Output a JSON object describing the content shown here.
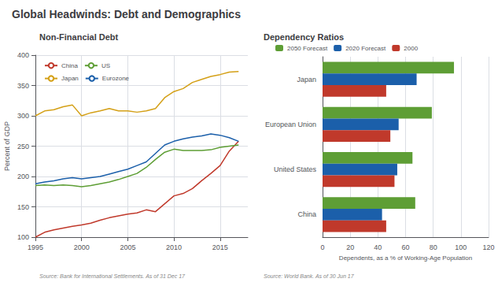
{
  "title": "Global Headwinds: Debt and Demographics",
  "chart_data": [
    {
      "type": "line",
      "title": "Non-Financial Debt",
      "ylabel": "Percent of GDP",
      "annotations": [
        "Source: Bank for International Settlements. As of 31 Dec 17"
      ],
      "x": [
        1995,
        1996,
        1997,
        1998,
        1999,
        2000,
        2001,
        2002,
        2003,
        2004,
        2005,
        2006,
        2007,
        2008,
        2009,
        2010,
        2011,
        2012,
        2013,
        2014,
        2015,
        2016,
        2017
      ],
      "series": [
        {
          "name": "China",
          "color": "#C0392B",
          "values": [
            100,
            108,
            112,
            115,
            118,
            120,
            123,
            128,
            132,
            135,
            138,
            140,
            145,
            142,
            155,
            168,
            172,
            180,
            193,
            205,
            218,
            242,
            258
          ]
        },
        {
          "name": "US",
          "color": "#5E9E35",
          "values": [
            185,
            186,
            185,
            186,
            185,
            183,
            185,
            188,
            191,
            195,
            200,
            205,
            215,
            228,
            240,
            245,
            243,
            243,
            243,
            244,
            248,
            250,
            252
          ]
        },
        {
          "name": "Japan",
          "color": "#D4A017",
          "values": [
            300,
            308,
            310,
            315,
            318,
            300,
            305,
            308,
            312,
            308,
            308,
            306,
            308,
            312,
            330,
            340,
            345,
            355,
            360,
            365,
            368,
            372,
            373
          ]
        },
        {
          "name": "Eurozone",
          "color": "#1B5FAA",
          "values": [
            188,
            191,
            193,
            196,
            198,
            196,
            198,
            200,
            204,
            208,
            212,
            218,
            224,
            238,
            252,
            258,
            262,
            265,
            267,
            270,
            268,
            264,
            258
          ]
        }
      ],
      "xlim": [
        1995,
        2018
      ],
      "xticks": [
        1995,
        2000,
        2005,
        2010,
        2015
      ],
      "ylim": [
        100,
        400
      ],
      "yticks": [
        100,
        150,
        200,
        250,
        300,
        350,
        400
      ],
      "grid": true,
      "legend": "upper left"
    },
    {
      "type": "bar",
      "orientation": "horizontal",
      "title": "Dependency Ratios",
      "xlabel": "Dependents, as a % of Working-Age Population",
      "annotations": [
        "Source: World Bank. As of 30 Jun 17"
      ],
      "categories": [
        "Japan",
        "European Union",
        "United States",
        "China"
      ],
      "series": [
        {
          "name": "2050 Forecast",
          "color": "#5E9E35",
          "values": [
            95,
            79,
            65,
            67
          ]
        },
        {
          "name": "2020 Forecast",
          "color": "#1B5FAA",
          "values": [
            68,
            55,
            54,
            43
          ]
        },
        {
          "name": "2000",
          "color": "#C0392B",
          "values": [
            46,
            49,
            52,
            46
          ]
        }
      ],
      "xlim": [
        0,
        120
      ],
      "xticks": [
        0,
        20,
        40,
        60,
        80,
        100,
        120
      ],
      "grid": true,
      "legend": "top"
    }
  ]
}
